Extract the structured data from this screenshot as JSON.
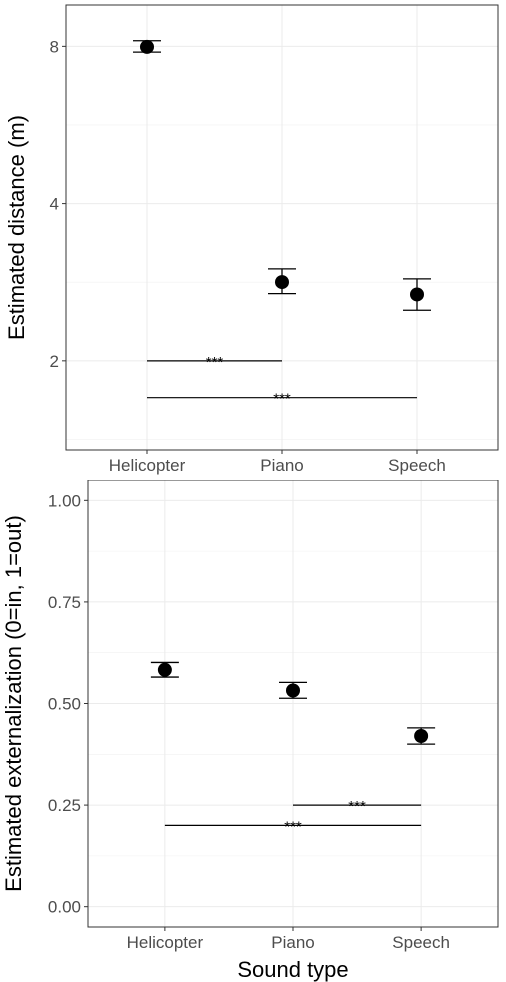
{
  "chart_data": [
    {
      "type": "scatter",
      "style": "point-with-errorbars",
      "y_scale": "log",
      "title": "",
      "xlabel": "",
      "ylabel": "Estimated distance (m)",
      "categories": [
        "Helicopter",
        "Piano",
        "Speech"
      ],
      "values": [
        7.98,
        2.83,
        2.68
      ],
      "error_lower": [
        7.8,
        2.69,
        2.5
      ],
      "error_upper": [
        8.2,
        3.0,
        2.87
      ],
      "yticks": [
        2,
        4,
        8
      ],
      "yticks_labels": [
        "2",
        "4",
        "8"
      ],
      "ylim": [
        1.35,
        9.6
      ],
      "grid": true,
      "significance": [
        {
          "from": "Helicopter",
          "to": "Piano",
          "y": 2.0,
          "label": "***"
        },
        {
          "from": "Helicopter",
          "to": "Speech",
          "y": 1.7,
          "label": "***"
        }
      ]
    },
    {
      "type": "scatter",
      "style": "point-with-errorbars",
      "title": "",
      "xlabel": "Sound type",
      "ylabel": "Estimated externalization (0=in, 1=out)",
      "categories": [
        "Helicopter",
        "Piano",
        "Speech"
      ],
      "values": [
        0.583,
        0.532,
        0.42
      ],
      "error_lower": [
        0.565,
        0.513,
        0.4
      ],
      "error_upper": [
        0.601,
        0.552,
        0.44
      ],
      "yticks": [
        0.0,
        0.25,
        0.5,
        0.75,
        1.0
      ],
      "yticks_labels": [
        "0.00",
        "0.25",
        "0.50",
        "0.75",
        "1.00"
      ],
      "ylim": [
        -0.05,
        1.05
      ],
      "grid": true,
      "significance": [
        {
          "from": "Piano",
          "to": "Speech",
          "y": 0.25,
          "label": "***"
        },
        {
          "from": "Helicopter",
          "to": "Speech",
          "y": 0.2,
          "label": "***"
        }
      ]
    }
  ]
}
